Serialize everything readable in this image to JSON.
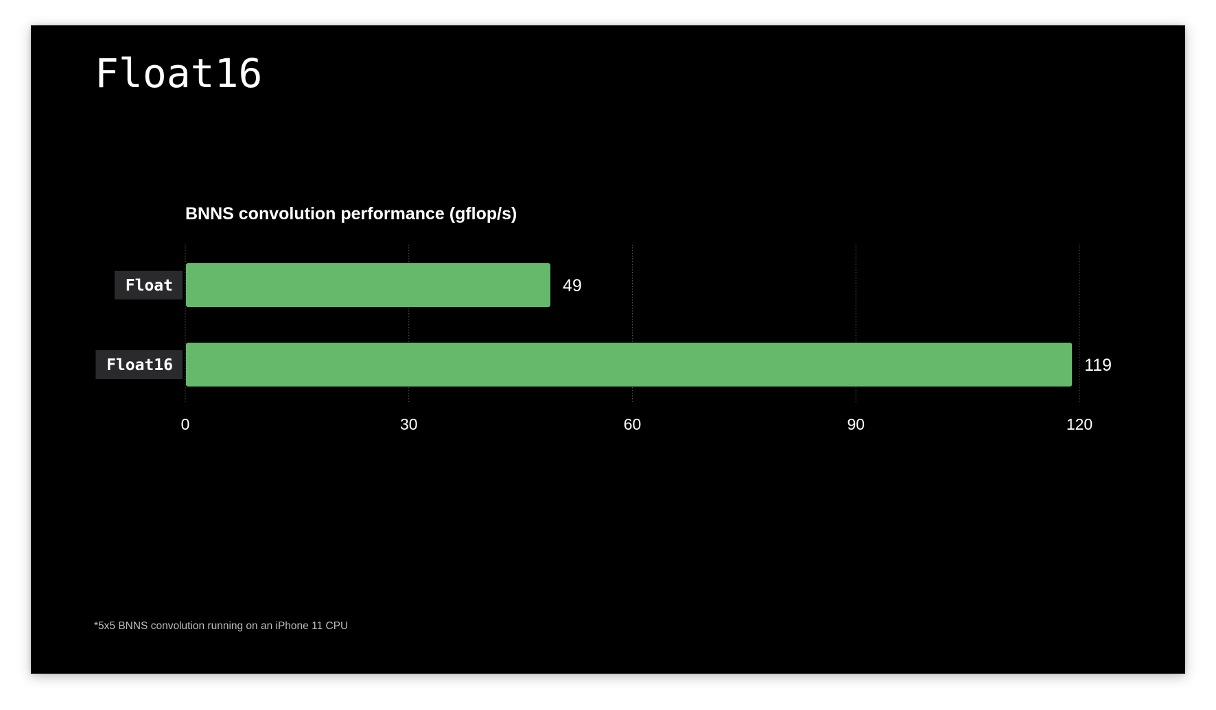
{
  "slide": {
    "title": "Float16",
    "footnote": "*5x5 BNNS convolution running on an iPhone 11 CPU"
  },
  "chart_data": {
    "type": "bar",
    "orientation": "horizontal",
    "title": "BNNS convolution performance (gflop/s)",
    "xlabel": "",
    "ylabel": "",
    "categories": [
      "Float",
      "Float16"
    ],
    "values": [
      49,
      119
    ],
    "xlim": [
      0,
      120
    ],
    "x_ticks": [
      0,
      30,
      60,
      90,
      120
    ],
    "grid": "vertical dotted",
    "legend": "none",
    "data_labels": [
      "49",
      "119"
    ]
  },
  "colors": {
    "background": "#000000",
    "bar": "#66b86b",
    "text": "#ffffff",
    "label_box": "#2a2a2c",
    "grid": "#5a5a5a"
  }
}
